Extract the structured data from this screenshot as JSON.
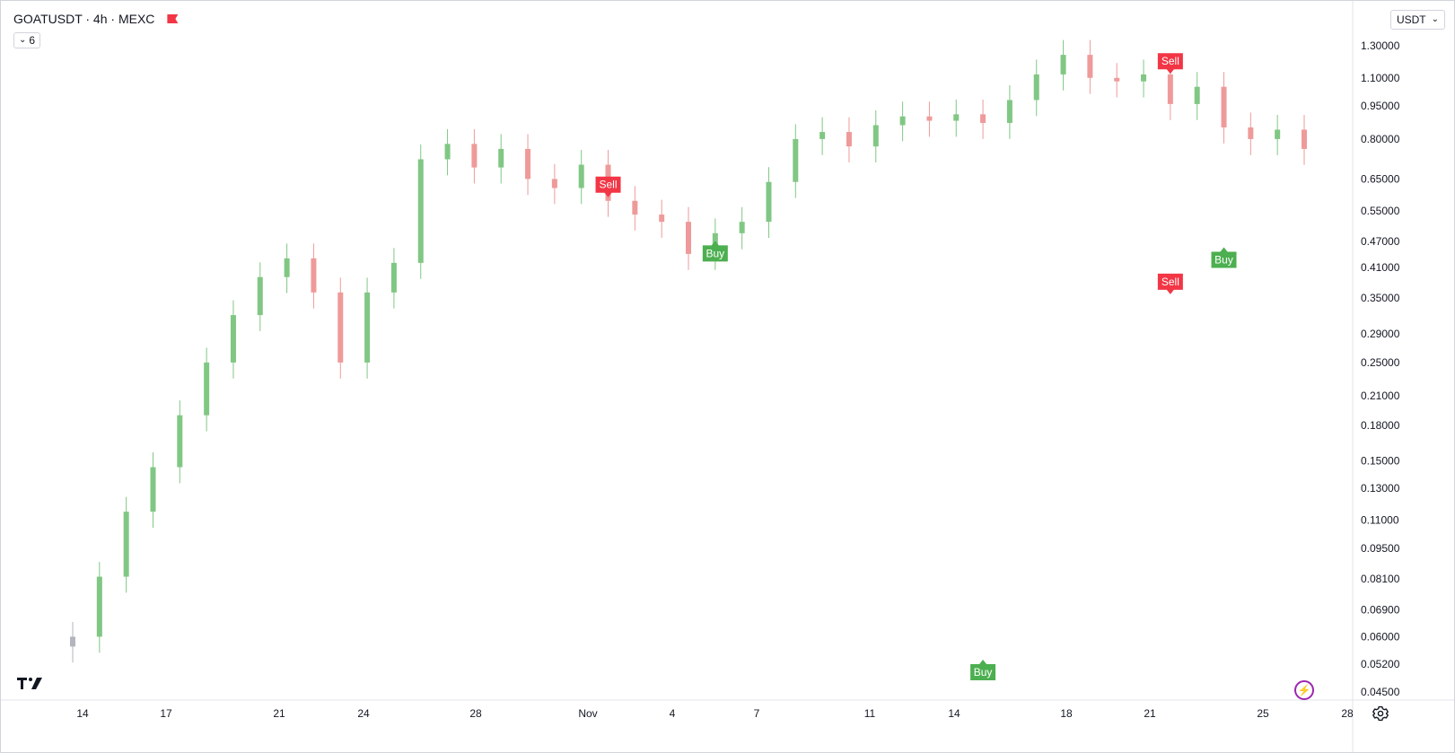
{
  "header": {
    "symbol_title": "GOATUSDT · 4h · MEXC",
    "indicator_count": "6",
    "currency": "USDT"
  },
  "chart_data": {
    "type": "candlestick",
    "y_axis_labels": [
      "1.30000",
      "1.10000",
      "0.95000",
      "0.80000",
      "0.65000",
      "0.55000",
      "0.47000",
      "0.41000",
      "0.35000",
      "0.29000",
      "0.25000",
      "0.21000",
      "0.18000",
      "0.15000",
      "0.13000",
      "0.11000",
      "0.09500",
      "0.08100",
      "0.06900",
      "0.06000",
      "0.05200",
      "0.04500"
    ],
    "x_axis_labels": [
      "14",
      "17",
      "21",
      "24",
      "28",
      "Nov",
      "4",
      "7",
      "11",
      "14",
      "18",
      "21",
      "25",
      "28"
    ],
    "ylim": [
      0.045,
      1.3
    ],
    "log_scale": true,
    "series": [
      {
        "name": "",
        "values": [
          {
            "x": "14",
            "price": 0.06
          },
          {
            "x": "14.5",
            "price": 0.082
          },
          {
            "x": "15",
            "price": 0.115
          },
          {
            "x": "16",
            "price": 0.145
          },
          {
            "x": "17",
            "price": 0.19
          },
          {
            "x": "17.5",
            "price": 0.25
          },
          {
            "x": "18",
            "price": 0.32
          },
          {
            "x": "19",
            "price": 0.39
          },
          {
            "x": "20",
            "price": 0.43
          },
          {
            "x": "21",
            "price": 0.36
          },
          {
            "x": "21.5",
            "price": 0.25
          },
          {
            "x": "22",
            "price": 0.36
          },
          {
            "x": "23",
            "price": 0.42
          },
          {
            "x": "24",
            "price": 0.72
          },
          {
            "x": "25",
            "price": 0.78
          },
          {
            "x": "26",
            "price": 0.69
          },
          {
            "x": "27",
            "price": 0.76
          },
          {
            "x": "28",
            "price": 0.65
          },
          {
            "x": "29",
            "price": 0.62
          },
          {
            "x": "30",
            "price": 0.7
          },
          {
            "x": "31",
            "price": 0.58
          },
          {
            "x": "Nov",
            "price": 0.54
          },
          {
            "x": "2",
            "price": 0.52
          },
          {
            "x": "3",
            "price": 0.44
          },
          {
            "x": "4",
            "price": 0.49
          },
          {
            "x": "5",
            "price": 0.52
          },
          {
            "x": "6",
            "price": 0.64
          },
          {
            "x": "7",
            "price": 0.8
          },
          {
            "x": "8",
            "price": 0.83
          },
          {
            "x": "9",
            "price": 0.77
          },
          {
            "x": "10",
            "price": 0.86
          },
          {
            "x": "11",
            "price": 0.9
          },
          {
            "x": "12",
            "price": 0.88
          },
          {
            "x": "13",
            "price": 0.91
          },
          {
            "x": "14",
            "price": 0.87
          },
          {
            "x": "15",
            "price": 0.98
          },
          {
            "x": "16",
            "price": 1.12
          },
          {
            "x": "17",
            "price": 1.24
          },
          {
            "x": "18",
            "price": 1.1
          },
          {
            "x": "19",
            "price": 1.08
          },
          {
            "x": "20",
            "price": 1.12
          },
          {
            "x": "21",
            "price": 0.96
          },
          {
            "x": "22",
            "price": 1.05
          },
          {
            "x": "23",
            "price": 0.85
          },
          {
            "x": "24",
            "price": 0.8
          },
          {
            "x": "25",
            "price": 0.84
          },
          {
            "x": "26",
            "price": 0.76
          }
        ]
      }
    ],
    "annotations": [
      {
        "label": "Buy",
        "type": "buy",
        "x": "14",
        "price": 0.052
      },
      {
        "label": "Sell",
        "type": "sell",
        "x": "21",
        "price": 0.365
      },
      {
        "label": "Buy",
        "type": "buy",
        "x": "23",
        "price": 0.445
      },
      {
        "label": "Sell",
        "type": "sell",
        "x": "31",
        "price": 0.605
      },
      {
        "label": "Buy",
        "type": "buy",
        "x": "4",
        "price": 0.46
      },
      {
        "label": "Sell",
        "type": "sell",
        "x": "21",
        "price": 1.15
      }
    ],
    "colors": {
      "up": "#81c784",
      "down": "#ef9a9a",
      "neutral": "#b2b5be",
      "buy_signal": "#4caf50",
      "sell_signal": "#f23645"
    },
    "grid": false,
    "legend": "none"
  },
  "branding": {
    "logo_icon": "tradingview-logo-icon",
    "lightning_icon": "lightning-icon",
    "settings_icon": "settings-icon"
  }
}
